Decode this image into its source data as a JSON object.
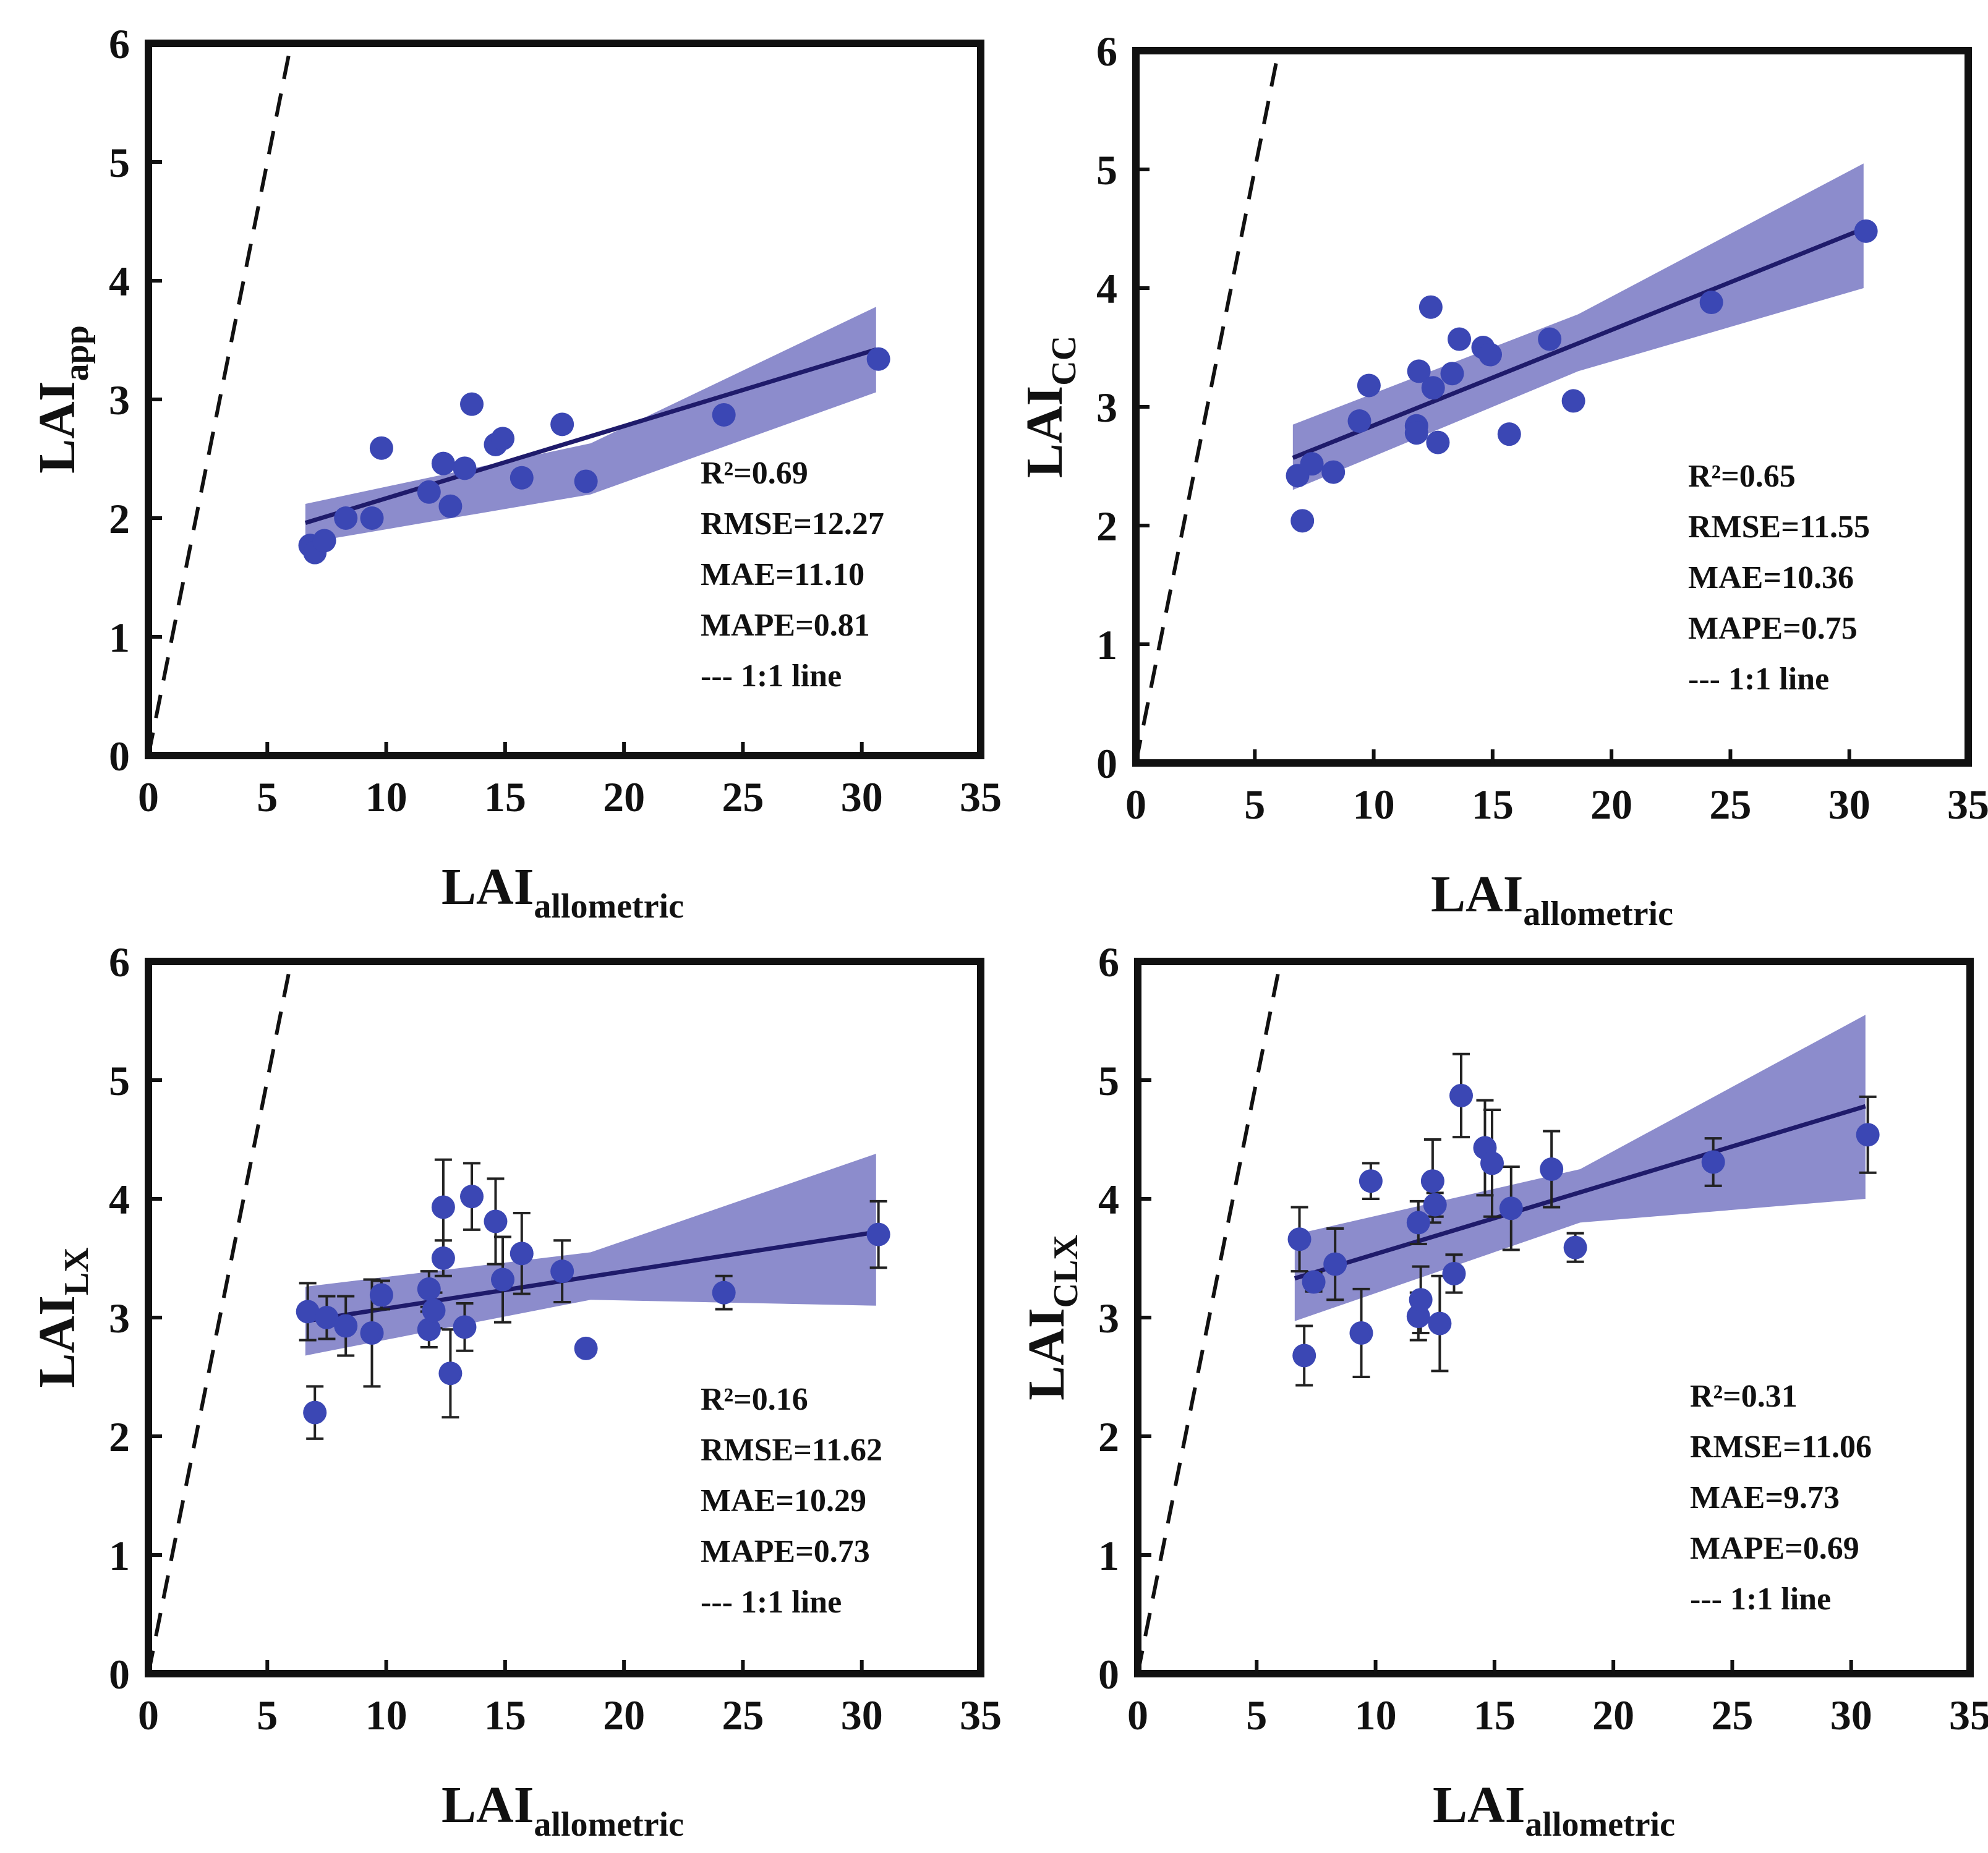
{
  "colors": {
    "point": "#3b47b4",
    "fit_line": "#1f1b6b",
    "band": "#8c8ccc",
    "axis": "#111111",
    "one_to_one": "#111111"
  },
  "chart_data": [
    {
      "type": "scatter",
      "panel": "top-left",
      "ylabel": {
        "main": "LAI",
        "sub": "app"
      },
      "xlabel": {
        "main": "LAI",
        "sub": "allometric"
      },
      "xlim": [
        0,
        35
      ],
      "ylim": [
        0,
        6
      ],
      "xticks": [
        0,
        5,
        10,
        15,
        20,
        25,
        30,
        35
      ],
      "yticks": [
        0,
        1,
        2,
        3,
        4,
        5,
        6
      ],
      "stats": [
        "R²=0.69",
        "RMSE=12.27",
        "MAE=11.10",
        "MAPE=0.81",
        "--- 1:1 line"
      ],
      "points": [
        {
          "x": 6.8,
          "y": 1.77
        },
        {
          "x": 7.0,
          "y": 1.71
        },
        {
          "x": 7.4,
          "y": 1.81
        },
        {
          "x": 8.3,
          "y": 2.0
        },
        {
          "x": 9.4,
          "y": 2.0
        },
        {
          "x": 9.8,
          "y": 2.59
        },
        {
          "x": 11.8,
          "y": 2.22
        },
        {
          "x": 12.4,
          "y": 2.46
        },
        {
          "x": 12.7,
          "y": 2.1
        },
        {
          "x": 13.3,
          "y": 2.42
        },
        {
          "x": 13.6,
          "y": 2.96
        },
        {
          "x": 14.6,
          "y": 2.62
        },
        {
          "x": 14.9,
          "y": 2.67
        },
        {
          "x": 15.7,
          "y": 2.34
        },
        {
          "x": 17.4,
          "y": 2.79
        },
        {
          "x": 18.4,
          "y": 2.31
        },
        {
          "x": 24.2,
          "y": 2.87
        },
        {
          "x": 30.7,
          "y": 3.34
        }
      ],
      "fit": {
        "x": [
          6.6,
          30.6
        ],
        "y": [
          1.96,
          3.42
        ]
      },
      "band": {
        "x": [
          6.6,
          18.6,
          30.6
        ],
        "upper": [
          2.12,
          2.63,
          3.78
        ],
        "lower": [
          1.79,
          2.2,
          3.06
        ]
      },
      "error_bars": false
    },
    {
      "type": "scatter",
      "panel": "top-right",
      "ylabel": {
        "main": "LAI",
        "sub": "CC"
      },
      "xlabel": {
        "main": "LAI",
        "sub": "allometric"
      },
      "xlim": [
        0,
        35
      ],
      "ylim": [
        0,
        6
      ],
      "xticks": [
        0,
        5,
        10,
        15,
        20,
        25,
        30,
        35
      ],
      "yticks": [
        0,
        1,
        2,
        3,
        4,
        5,
        6
      ],
      "stats": [
        "R²=0.65",
        "RMSE=11.55",
        "MAE=10.36",
        "MAPE=0.75",
        "--- 1:1 line"
      ],
      "points": [
        {
          "x": 6.8,
          "y": 2.42
        },
        {
          "x": 7.0,
          "y": 2.04
        },
        {
          "x": 7.4,
          "y": 2.52
        },
        {
          "x": 8.3,
          "y": 2.45
        },
        {
          "x": 9.4,
          "y": 2.88
        },
        {
          "x": 9.8,
          "y": 3.18
        },
        {
          "x": 11.8,
          "y": 2.84
        },
        {
          "x": 11.8,
          "y": 2.78
        },
        {
          "x": 11.9,
          "y": 3.3
        },
        {
          "x": 12.4,
          "y": 3.84
        },
        {
          "x": 12.5,
          "y": 3.16
        },
        {
          "x": 12.7,
          "y": 2.7
        },
        {
          "x": 13.3,
          "y": 3.28
        },
        {
          "x": 13.6,
          "y": 3.57
        },
        {
          "x": 14.6,
          "y": 3.5
        },
        {
          "x": 14.9,
          "y": 3.44
        },
        {
          "x": 15.7,
          "y": 2.77
        },
        {
          "x": 17.4,
          "y": 3.57
        },
        {
          "x": 18.4,
          "y": 3.05
        },
        {
          "x": 24.2,
          "y": 3.88
        },
        {
          "x": 30.7,
          "y": 4.48
        }
      ],
      "fit": {
        "x": [
          6.6,
          30.6
        ],
        "y": [
          2.57,
          4.5
        ]
      },
      "band": {
        "x": [
          6.6,
          18.6,
          30.6
        ],
        "upper": [
          2.85,
          3.78,
          5.05
        ],
        "lower": [
          2.3,
          3.3,
          4.0
        ]
      },
      "error_bars": false
    },
    {
      "type": "scatter",
      "panel": "bottom-left",
      "ylabel": {
        "main": "LAI",
        "sub": "LX"
      },
      "xlabel": {
        "main": "LAI",
        "sub": "allometric"
      },
      "xlim": [
        0,
        35
      ],
      "ylim": [
        0,
        6
      ],
      "xticks": [
        0,
        5,
        10,
        15,
        20,
        25,
        30,
        35
      ],
      "yticks": [
        0,
        1,
        2,
        3,
        4,
        5,
        6
      ],
      "stats": [
        "R²=0.16",
        "RMSE=11.62",
        "MAE=10.29",
        "MAPE=0.73",
        "--- 1:1 line"
      ],
      "points": [
        {
          "x": 6.7,
          "y": 3.05,
          "err": 0.24
        },
        {
          "x": 7.0,
          "y": 2.2,
          "err": 0.22
        },
        {
          "x": 7.5,
          "y": 3.0,
          "err": 0.18
        },
        {
          "x": 8.3,
          "y": 2.93,
          "err": 0.25
        },
        {
          "x": 9.4,
          "y": 2.87,
          "err": 0.45
        },
        {
          "x": 9.8,
          "y": 3.19,
          "err": 0.12
        },
        {
          "x": 11.8,
          "y": 3.24,
          "err": 0.15
        },
        {
          "x": 11.8,
          "y": 2.9,
          "err": 0.15
        },
        {
          "x": 12.0,
          "y": 3.06,
          "err": 0.15
        },
        {
          "x": 12.4,
          "y": 3.93,
          "err": 0.4
        },
        {
          "x": 12.4,
          "y": 3.5,
          "err": 0.15
        },
        {
          "x": 12.7,
          "y": 2.53,
          "err": 0.37
        },
        {
          "x": 13.3,
          "y": 2.92,
          "err": 0.2
        },
        {
          "x": 13.6,
          "y": 4.02,
          "err": 0.28
        },
        {
          "x": 14.6,
          "y": 3.81,
          "err": 0.36
        },
        {
          "x": 14.9,
          "y": 3.32,
          "err": 0.36
        },
        {
          "x": 15.7,
          "y": 3.54,
          "err": 0.34
        },
        {
          "x": 17.4,
          "y": 3.39,
          "err": 0.26
        },
        {
          "x": 18.4,
          "y": 2.74,
          "err": 0.06
        },
        {
          "x": 24.2,
          "y": 3.21,
          "err": 0.14
        },
        {
          "x": 30.7,
          "y": 3.7,
          "err": 0.28
        }
      ],
      "fit": {
        "x": [
          6.6,
          30.6
        ],
        "y": [
          2.97,
          3.72
        ]
      },
      "band": {
        "x": [
          6.6,
          18.6,
          30.6
        ],
        "upper": [
          3.26,
          3.55,
          4.38
        ],
        "lower": [
          2.68,
          3.15,
          3.1
        ]
      },
      "error_bars": true
    },
    {
      "type": "scatter",
      "panel": "bottom-right",
      "ylabel": {
        "main": "LAI",
        "sub": "CLX"
      },
      "xlabel": {
        "main": "LAI",
        "sub": "allometric"
      },
      "xlim": [
        0,
        35
      ],
      "ylim": [
        0,
        6
      ],
      "xticks": [
        0,
        5,
        10,
        15,
        20,
        25,
        30,
        35
      ],
      "yticks": [
        0,
        1,
        2,
        3,
        4,
        5,
        6
      ],
      "stats": [
        "R²=0.31",
        "RMSE=11.06",
        "MAE=9.73",
        "MAPE=0.69",
        "--- 1:1 line"
      ],
      "points": [
        {
          "x": 6.8,
          "y": 3.66,
          "err": 0.27
        },
        {
          "x": 7.0,
          "y": 2.68,
          "err": 0.25
        },
        {
          "x": 7.4,
          "y": 3.3,
          "err": 0.08
        },
        {
          "x": 8.3,
          "y": 3.45,
          "err": 0.3
        },
        {
          "x": 9.4,
          "y": 2.87,
          "err": 0.37
        },
        {
          "x": 9.8,
          "y": 4.15,
          "err": 0.15
        },
        {
          "x": 11.8,
          "y": 3.8,
          "err": 0.18
        },
        {
          "x": 11.8,
          "y": 3.01,
          "err": 0.2
        },
        {
          "x": 11.9,
          "y": 3.15,
          "err": 0.28
        },
        {
          "x": 12.4,
          "y": 4.15,
          "err": 0.35
        },
        {
          "x": 12.5,
          "y": 3.95,
          "err": 0.1
        },
        {
          "x": 12.7,
          "y": 2.95,
          "err": 0.4
        },
        {
          "x": 13.3,
          "y": 3.37,
          "err": 0.16
        },
        {
          "x": 13.6,
          "y": 4.87,
          "err": 0.35
        },
        {
          "x": 14.6,
          "y": 4.43,
          "err": 0.4
        },
        {
          "x": 14.9,
          "y": 4.3,
          "err": 0.45
        },
        {
          "x": 15.7,
          "y": 3.92,
          "err": 0.35
        },
        {
          "x": 17.4,
          "y": 4.25,
          "err": 0.32
        },
        {
          "x": 18.4,
          "y": 3.59,
          "err": 0.12
        },
        {
          "x": 24.2,
          "y": 4.31,
          "err": 0.2
        },
        {
          "x": 30.7,
          "y": 4.54,
          "err": 0.32
        }
      ],
      "fit": {
        "x": [
          6.6,
          30.6
        ],
        "y": [
          3.33,
          4.78
        ]
      },
      "band": {
        "x": [
          6.6,
          18.6,
          30.6
        ],
        "upper": [
          3.7,
          4.25,
          5.55
        ],
        "lower": [
          2.97,
          3.8,
          4.0
        ]
      },
      "error_bars": true
    }
  ]
}
